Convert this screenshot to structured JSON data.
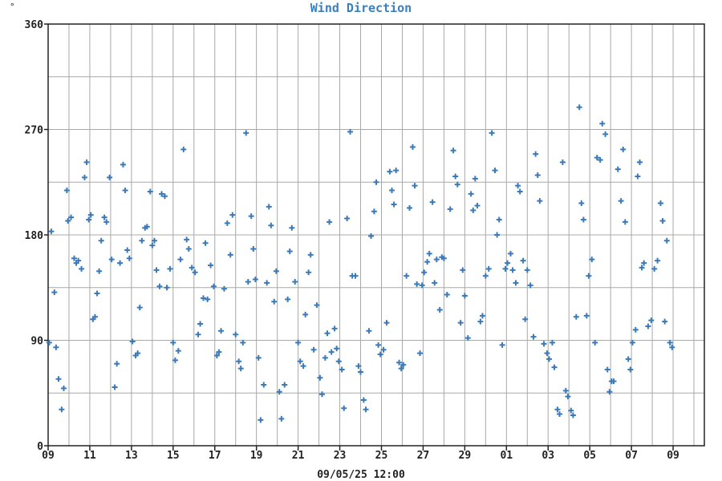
{
  "chart_data": {
    "type": "scatter",
    "title": "Wind Direction",
    "corner_mark": "°",
    "xlabel": "09/05/25 12:00",
    "ylabel": "",
    "ylim": [
      0,
      360
    ],
    "xlim": [
      0,
      31.5
    ],
    "yticks": [
      0,
      90,
      180,
      270,
      360
    ],
    "ygrid_step": 45,
    "xticks": [
      {
        "x": 0,
        "label": "09"
      },
      {
        "x": 2,
        "label": "11"
      },
      {
        "x": 4,
        "label": "13"
      },
      {
        "x": 6,
        "label": "15"
      },
      {
        "x": 8,
        "label": "17"
      },
      {
        "x": 10,
        "label": "19"
      },
      {
        "x": 12,
        "label": "21"
      },
      {
        "x": 14,
        "label": "23"
      },
      {
        "x": 16,
        "label": "25"
      },
      {
        "x": 18,
        "label": "27"
      },
      {
        "x": 20,
        "label": "29"
      },
      {
        "x": 22,
        "label": "01"
      },
      {
        "x": 24,
        "label": "03"
      },
      {
        "x": 26,
        "label": "05"
      },
      {
        "x": 28,
        "label": "07"
      },
      {
        "x": 30,
        "label": "09"
      }
    ],
    "xgrid_step": 1,
    "grid": true,
    "marker": "+",
    "colors": {
      "points": "#3a7ab8",
      "title": "#3b7fbf",
      "grid": "#a8a8a8",
      "axis": "#222222"
    },
    "series": [
      {
        "points": [
          [
            0.05,
            88
          ],
          [
            0.15,
            183
          ],
          [
            0.3,
            131
          ],
          [
            0.38,
            84
          ],
          [
            0.5,
            57
          ],
          [
            0.65,
            31
          ],
          [
            0.75,
            49
          ],
          [
            0.9,
            218
          ],
          [
            0.95,
            192
          ],
          [
            1.1,
            195
          ],
          [
            1.25,
            160
          ],
          [
            1.35,
            156
          ],
          [
            1.45,
            158
          ],
          [
            1.6,
            151
          ],
          [
            1.75,
            229
          ],
          [
            1.85,
            242
          ],
          [
            1.95,
            193
          ],
          [
            2.05,
            197
          ],
          [
            2.15,
            108
          ],
          [
            2.25,
            110
          ],
          [
            2.35,
            130
          ],
          [
            2.45,
            149
          ],
          [
            2.55,
            175
          ],
          [
            2.7,
            195
          ],
          [
            2.8,
            191
          ],
          [
            2.95,
            229
          ],
          [
            3.05,
            159
          ],
          [
            3.2,
            50
          ],
          [
            3.3,
            70
          ],
          [
            3.45,
            156
          ],
          [
            3.6,
            240
          ],
          [
            3.7,
            218
          ],
          [
            3.8,
            167
          ],
          [
            3.9,
            160
          ],
          [
            4.05,
            89
          ],
          [
            4.2,
            77
          ],
          [
            4.3,
            79
          ],
          [
            4.4,
            118
          ],
          [
            4.5,
            175
          ],
          [
            4.65,
            186
          ],
          [
            4.75,
            187
          ],
          [
            4.9,
            217
          ],
          [
            5.0,
            171
          ],
          [
            5.1,
            175
          ],
          [
            5.2,
            150
          ],
          [
            5.35,
            136
          ],
          [
            5.45,
            215
          ],
          [
            5.6,
            213
          ],
          [
            5.7,
            135
          ],
          [
            5.85,
            151
          ],
          [
            6.0,
            88
          ],
          [
            6.1,
            73
          ],
          [
            6.25,
            81
          ],
          [
            6.35,
            159
          ],
          [
            6.5,
            253
          ],
          [
            6.65,
            176
          ],
          [
            6.75,
            168
          ],
          [
            6.9,
            152
          ],
          [
            7.05,
            148
          ],
          [
            7.2,
            95
          ],
          [
            7.3,
            104
          ],
          [
            7.45,
            126
          ],
          [
            7.55,
            173
          ],
          [
            7.65,
            125
          ],
          [
            7.8,
            154
          ],
          [
            7.95,
            136
          ],
          [
            8.1,
            77
          ],
          [
            8.2,
            80
          ],
          [
            8.3,
            98
          ],
          [
            8.45,
            134
          ],
          [
            8.6,
            190
          ],
          [
            8.75,
            163
          ],
          [
            8.85,
            197
          ],
          [
            9.0,
            95
          ],
          [
            9.15,
            72
          ],
          [
            9.25,
            66
          ],
          [
            9.35,
            88
          ],
          [
            9.5,
            267
          ],
          [
            9.6,
            140
          ],
          [
            9.75,
            196
          ],
          [
            9.85,
            168
          ],
          [
            9.95,
            142
          ],
          [
            10.1,
            75
          ],
          [
            10.2,
            22
          ],
          [
            10.35,
            52
          ],
          [
            10.5,
            139
          ],
          [
            10.6,
            204
          ],
          [
            10.7,
            188
          ],
          [
            10.85,
            123
          ],
          [
            10.95,
            149
          ],
          [
            11.1,
            46
          ],
          [
            11.2,
            23
          ],
          [
            11.35,
            52
          ],
          [
            11.5,
            125
          ],
          [
            11.6,
            166
          ],
          [
            11.7,
            186
          ],
          [
            11.85,
            140
          ],
          [
            12.0,
            88
          ],
          [
            12.1,
            72
          ],
          [
            12.25,
            68
          ],
          [
            12.35,
            112
          ],
          [
            12.5,
            148
          ],
          [
            12.6,
            163
          ],
          [
            12.75,
            82
          ],
          [
            12.9,
            120
          ],
          [
            13.05,
            58
          ],
          [
            13.15,
            44
          ],
          [
            13.3,
            75
          ],
          [
            13.4,
            96
          ],
          [
            13.5,
            191
          ],
          [
            13.6,
            80
          ],
          [
            13.75,
            100
          ],
          [
            13.85,
            83
          ],
          [
            13.95,
            72
          ],
          [
            14.1,
            65
          ],
          [
            14.2,
            32
          ],
          [
            14.35,
            194
          ],
          [
            14.5,
            268
          ],
          [
            14.6,
            145
          ],
          [
            14.75,
            145
          ],
          [
            14.9,
            68
          ],
          [
            15.0,
            63
          ],
          [
            15.15,
            39
          ],
          [
            15.25,
            31
          ],
          [
            15.4,
            98
          ],
          [
            15.5,
            179
          ],
          [
            15.65,
            200
          ],
          [
            15.75,
            225
          ],
          [
            15.85,
            86
          ],
          [
            15.95,
            78
          ],
          [
            16.1,
            82
          ],
          [
            16.25,
            105
          ],
          [
            16.4,
            234
          ],
          [
            16.5,
            218
          ],
          [
            16.6,
            206
          ],
          [
            16.7,
            235
          ],
          [
            16.85,
            71
          ],
          [
            16.95,
            66
          ],
          [
            17.05,
            69
          ],
          [
            17.2,
            145
          ],
          [
            17.35,
            203
          ],
          [
            17.5,
            255
          ],
          [
            17.6,
            222
          ],
          [
            17.7,
            138
          ],
          [
            17.85,
            79
          ],
          [
            17.95,
            137
          ],
          [
            18.05,
            148
          ],
          [
            18.2,
            157
          ],
          [
            18.3,
            164
          ],
          [
            18.45,
            208
          ],
          [
            18.55,
            139
          ],
          [
            18.65,
            159
          ],
          [
            18.8,
            116
          ],
          [
            18.9,
            161
          ],
          [
            19.0,
            160
          ],
          [
            19.15,
            129
          ],
          [
            19.3,
            202
          ],
          [
            19.45,
            252
          ],
          [
            19.55,
            230
          ],
          [
            19.65,
            223
          ],
          [
            19.8,
            105
          ],
          [
            19.9,
            150
          ],
          [
            20.0,
            128
          ],
          [
            20.15,
            92
          ],
          [
            20.3,
            215
          ],
          [
            20.4,
            201
          ],
          [
            20.5,
            228
          ],
          [
            20.6,
            205
          ],
          [
            20.75,
            106
          ],
          [
            20.85,
            111
          ],
          [
            21.0,
            145
          ],
          [
            21.15,
            151
          ],
          [
            21.3,
            267
          ],
          [
            21.45,
            235
          ],
          [
            21.55,
            180
          ],
          [
            21.65,
            193
          ],
          [
            21.8,
            86
          ],
          [
            21.95,
            151
          ],
          [
            22.05,
            156
          ],
          [
            22.2,
            164
          ],
          [
            22.3,
            150
          ],
          [
            22.45,
            139
          ],
          [
            22.55,
            222
          ],
          [
            22.65,
            217
          ],
          [
            22.8,
            158
          ],
          [
            22.9,
            108
          ],
          [
            23.0,
            150
          ],
          [
            23.15,
            137
          ],
          [
            23.3,
            93
          ],
          [
            23.4,
            249
          ],
          [
            23.5,
            231
          ],
          [
            23.6,
            209
          ],
          [
            23.8,
            87
          ],
          [
            23.95,
            79
          ],
          [
            24.05,
            74
          ],
          [
            24.2,
            88
          ],
          [
            24.3,
            67
          ],
          [
            24.45,
            31
          ],
          [
            24.55,
            27
          ],
          [
            24.7,
            242
          ],
          [
            24.85,
            47
          ],
          [
            24.95,
            42
          ],
          [
            25.1,
            30
          ],
          [
            25.2,
            26
          ],
          [
            25.35,
            110
          ],
          [
            25.5,
            289
          ],
          [
            25.6,
            207
          ],
          [
            25.7,
            193
          ],
          [
            25.85,
            111
          ],
          [
            25.95,
            145
          ],
          [
            26.1,
            159
          ],
          [
            26.25,
            88
          ],
          [
            26.35,
            246
          ],
          [
            26.5,
            244
          ],
          [
            26.6,
            275
          ],
          [
            26.75,
            266
          ],
          [
            26.85,
            65
          ],
          [
            26.95,
            46
          ],
          [
            27.05,
            55
          ],
          [
            27.15,
            55
          ],
          [
            27.35,
            236
          ],
          [
            27.5,
            209
          ],
          [
            27.6,
            253
          ],
          [
            27.7,
            191
          ],
          [
            27.85,
            74
          ],
          [
            27.95,
            65
          ],
          [
            28.05,
            88
          ],
          [
            28.2,
            99
          ],
          [
            28.3,
            230
          ],
          [
            28.4,
            242
          ],
          [
            28.5,
            152
          ],
          [
            28.6,
            156
          ],
          [
            28.8,
            102
          ],
          [
            28.95,
            107
          ],
          [
            29.1,
            151
          ],
          [
            29.25,
            158
          ],
          [
            29.4,
            207
          ],
          [
            29.5,
            192
          ],
          [
            29.6,
            106
          ],
          [
            29.7,
            175
          ],
          [
            29.85,
            88
          ],
          [
            29.95,
            84
          ]
        ]
      }
    ]
  }
}
